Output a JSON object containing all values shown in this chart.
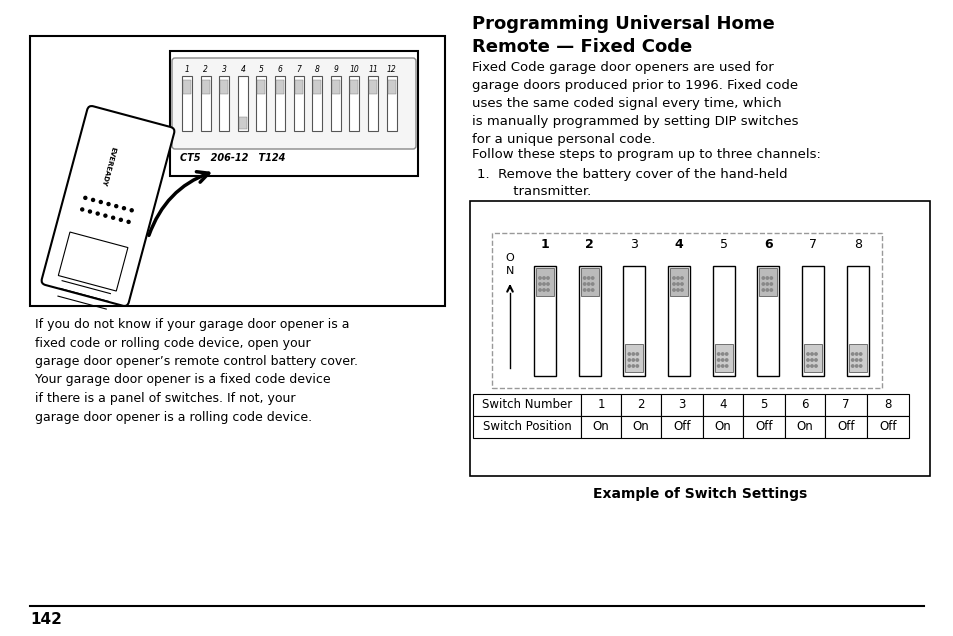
{
  "title_line1": "Programming Universal Home",
  "title_line2": "Remote — Fixed Code",
  "body_text_1": "Fixed Code garage door openers are used for\ngarage doors produced prior to 1996. Fixed code\nuses the same coded signal every time, which\nis manually programmed by setting DIP switches\nfor a unique personal code.",
  "body_text_2": "Follow these steps to program up to three channels:",
  "step1_line1": "1.  Remove the battery cover of the hand-held",
  "step1_line2": "     transmitter.",
  "left_text": "If you do not know if your garage door opener is a\nfixed code or rolling code device, open your\ngarage door opener’s remote control battery cover.\nYour garage door opener is a fixed code device\nif there is a panel of switches. If not, your\ngarage door opener is a rolling code device.",
  "table_row1": [
    "Switch Number",
    "1",
    "2",
    "3",
    "4",
    "5",
    "6",
    "7",
    "8"
  ],
  "table_row2": [
    "Switch Position",
    "On",
    "On",
    "Off",
    "On",
    "Off",
    "On",
    "Off",
    "Off"
  ],
  "caption": "Example of Switch Settings",
  "page_number": "142",
  "switch_positions": [
    1,
    1,
    0,
    1,
    0,
    1,
    0,
    0
  ],
  "dip_nums": [
    "1",
    "2",
    "3",
    "4",
    "5",
    "6",
    "7",
    "8",
    "9",
    "10",
    "11",
    "12"
  ],
  "dip_text": "CT5   206-12   T124",
  "bg_color": "#ffffff",
  "text_color": "#000000"
}
